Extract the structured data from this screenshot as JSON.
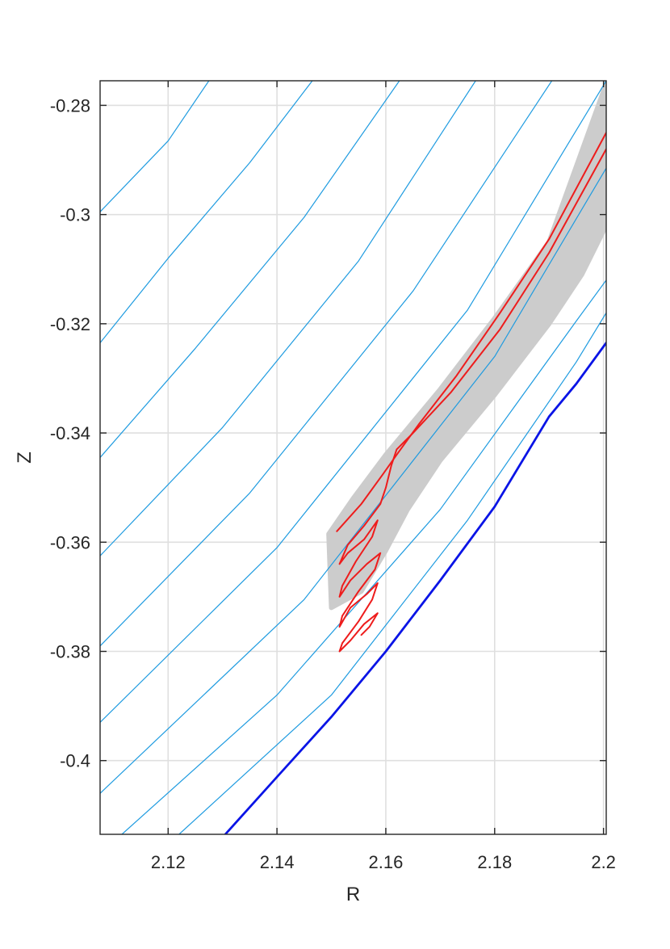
{
  "chart_data": {
    "type": "line",
    "title": "",
    "xlabel": "R",
    "ylabel": "Z",
    "xlim": [
      2.1075,
      2.2005
    ],
    "ylim": [
      -0.4135,
      -0.2755
    ],
    "xticks": [
      2.12,
      2.14,
      2.16,
      2.18,
      2.2
    ],
    "xtick_labels": [
      "2.12",
      "2.14",
      "2.16",
      "2.18",
      "2.2"
    ],
    "yticks": [
      -0.28,
      -0.3,
      -0.32,
      -0.34,
      -0.36,
      -0.38,
      -0.4
    ],
    "ytick_labels": [
      "-0.28",
      "-0.3",
      "-0.32",
      "-0.34",
      "-0.36",
      "-0.38",
      "-0.4"
    ],
    "grid": true,
    "colors": {
      "flux_surfaces": "#1e9be0",
      "boundary": "#0a14e6",
      "trajectory": "#ee1c1c",
      "orbit_band": "#cccccc",
      "axes": "#262626",
      "grid": "#dfdfdf"
    },
    "series": [
      {
        "style": "flux",
        "x": [
          2.1075,
          2.12,
          2.1275
        ],
        "y": [
          -0.2995,
          -0.2865,
          -0.2755
        ]
      },
      {
        "style": "flux",
        "x": [
          2.1075,
          2.12,
          2.135,
          2.1465
        ],
        "y": [
          -0.3235,
          -0.308,
          -0.2905,
          -0.2755
        ]
      },
      {
        "style": "flux",
        "x": [
          2.1075,
          2.125,
          2.145,
          2.1625
        ],
        "y": [
          -0.3445,
          -0.3245,
          -0.3005,
          -0.2755
        ]
      },
      {
        "style": "flux",
        "x": [
          2.1075,
          2.13,
          2.155,
          2.1765
        ],
        "y": [
          -0.3625,
          -0.339,
          -0.3085,
          -0.2755
        ]
      },
      {
        "style": "flux",
        "x": [
          2.1075,
          2.135,
          2.165,
          2.1905
        ],
        "y": [
          -0.379,
          -0.351,
          -0.314,
          -0.2755
        ]
      },
      {
        "style": "flux",
        "x": [
          2.1075,
          2.14,
          2.175,
          2.2005
        ],
        "y": [
          -0.393,
          -0.361,
          -0.3175,
          -0.2755
        ]
      },
      {
        "style": "flux",
        "x": [
          2.1075,
          2.145,
          2.18,
          2.2005
        ],
        "y": [
          -0.406,
          -0.3705,
          -0.326,
          -0.2915
        ]
      },
      {
        "style": "flux",
        "x": [
          2.1115,
          2.14,
          2.17,
          2.195,
          2.2005
        ],
        "y": [
          -0.4135,
          -0.388,
          -0.354,
          -0.3195,
          -0.312
        ]
      },
      {
        "style": "flux",
        "x": [
          2.122,
          2.15,
          2.175,
          2.195,
          2.2005
        ],
        "y": [
          -0.4135,
          -0.388,
          -0.356,
          -0.327,
          -0.318
        ]
      },
      {
        "style": "boundary",
        "x": [
          2.1305,
          2.14,
          2.15,
          2.16,
          2.17,
          2.18,
          2.19,
          2.195,
          2.2005
        ],
        "y": [
          -0.4135,
          -0.403,
          -0.392,
          -0.38,
          -0.367,
          -0.3535,
          -0.337,
          -0.331,
          -0.3235
        ]
      },
      {
        "style": "trajectory",
        "x": [
          2.151,
          2.1555,
          2.1595,
          2.162,
          2.166,
          2.173,
          2.181,
          2.19,
          2.2005
        ],
        "y": [
          -0.358,
          -0.353,
          -0.3475,
          -0.344,
          -0.3385,
          -0.3295,
          -0.318,
          -0.3045,
          -0.285
        ]
      },
      {
        "style": "trajectory",
        "x": [
          2.2005,
          2.19,
          2.181,
          2.172,
          2.165,
          2.162,
          2.161,
          2.16,
          2.159,
          2.156,
          2.153,
          2.1515,
          2.153,
          2.156,
          2.1585,
          2.1575,
          2.1545,
          2.152,
          2.1515,
          2.1535,
          2.1565,
          2.159,
          2.158,
          2.155,
          2.152,
          2.1515,
          2.1535,
          2.1565,
          2.1585,
          2.1575,
          2.155,
          2.152,
          2.1515,
          2.1535,
          2.156,
          2.1585,
          2.157,
          2.1555
        ],
        "y": [
          -0.288,
          -0.307,
          -0.321,
          -0.3325,
          -0.34,
          -0.343,
          -0.346,
          -0.35,
          -0.353,
          -0.357,
          -0.3605,
          -0.364,
          -0.362,
          -0.3595,
          -0.356,
          -0.359,
          -0.3635,
          -0.368,
          -0.37,
          -0.367,
          -0.364,
          -0.362,
          -0.365,
          -0.369,
          -0.3735,
          -0.3755,
          -0.372,
          -0.3695,
          -0.3675,
          -0.3705,
          -0.3745,
          -0.3785,
          -0.38,
          -0.378,
          -0.375,
          -0.373,
          -0.3755,
          -0.377
        ]
      }
    ],
    "orbit_band": {
      "x": [
        2.1495,
        2.154,
        2.16,
        2.17,
        2.18,
        2.19,
        2.2005,
        2.2005,
        2.196,
        2.19,
        2.18,
        2.17,
        2.164,
        2.16,
        2.1555,
        2.15
      ],
      "y": [
        -0.3585,
        -0.352,
        -0.344,
        -0.332,
        -0.319,
        -0.305,
        -0.276,
        -0.302,
        -0.311,
        -0.32,
        -0.333,
        -0.345,
        -0.354,
        -0.3615,
        -0.369,
        -0.372
      ]
    }
  }
}
